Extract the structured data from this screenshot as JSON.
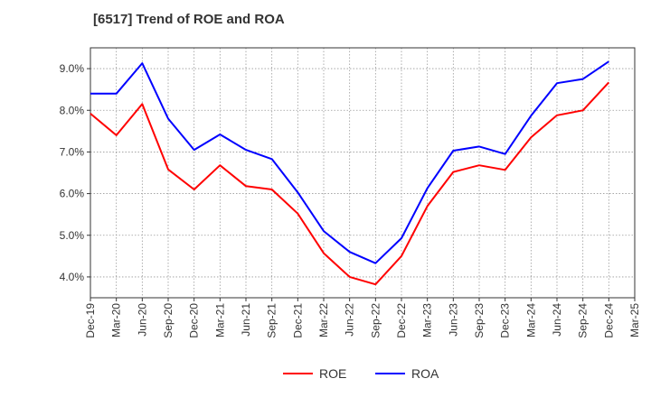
{
  "chart_data": {
    "type": "line",
    "title": "[6517]  Trend of ROE and ROA",
    "xlabel": "",
    "ylabel": "",
    "x": [
      "Dec-19",
      "Mar-20",
      "Jun-20",
      "Sep-20",
      "Dec-20",
      "Mar-21",
      "Jun-21",
      "Sep-21",
      "Dec-21",
      "Mar-22",
      "Jun-22",
      "Sep-22",
      "Dec-22",
      "Mar-23",
      "Jun-23",
      "Sep-23",
      "Dec-23",
      "Mar-24",
      "Jun-24",
      "Sep-24",
      "Dec-24",
      "Mar-25"
    ],
    "ylim": [
      3.5,
      9.5
    ],
    "yticks": [
      4.0,
      5.0,
      6.0,
      7.0,
      8.0,
      9.0
    ],
    "ytick_labels": [
      "4.0%",
      "5.0%",
      "6.0%",
      "7.0%",
      "8.0%",
      "9.0%"
    ],
    "grid": true,
    "legend_position": "bottom-center",
    "series": [
      {
        "name": "ROE",
        "color": "#ff0000",
        "values": [
          7.92,
          7.4,
          8.15,
          6.58,
          6.1,
          6.68,
          6.18,
          6.1,
          5.52,
          4.57,
          4.0,
          3.82,
          4.5,
          5.7,
          6.52,
          6.68,
          6.57,
          7.35,
          7.88,
          8.0,
          8.67,
          null
        ]
      },
      {
        "name": "ROA",
        "color": "#0000ff",
        "values": [
          8.4,
          8.4,
          9.13,
          7.8,
          7.05,
          7.42,
          7.05,
          6.83,
          6.03,
          5.1,
          4.6,
          4.33,
          4.93,
          6.13,
          7.03,
          7.13,
          6.95,
          7.87,
          8.65,
          8.75,
          9.17,
          null
        ]
      }
    ]
  }
}
